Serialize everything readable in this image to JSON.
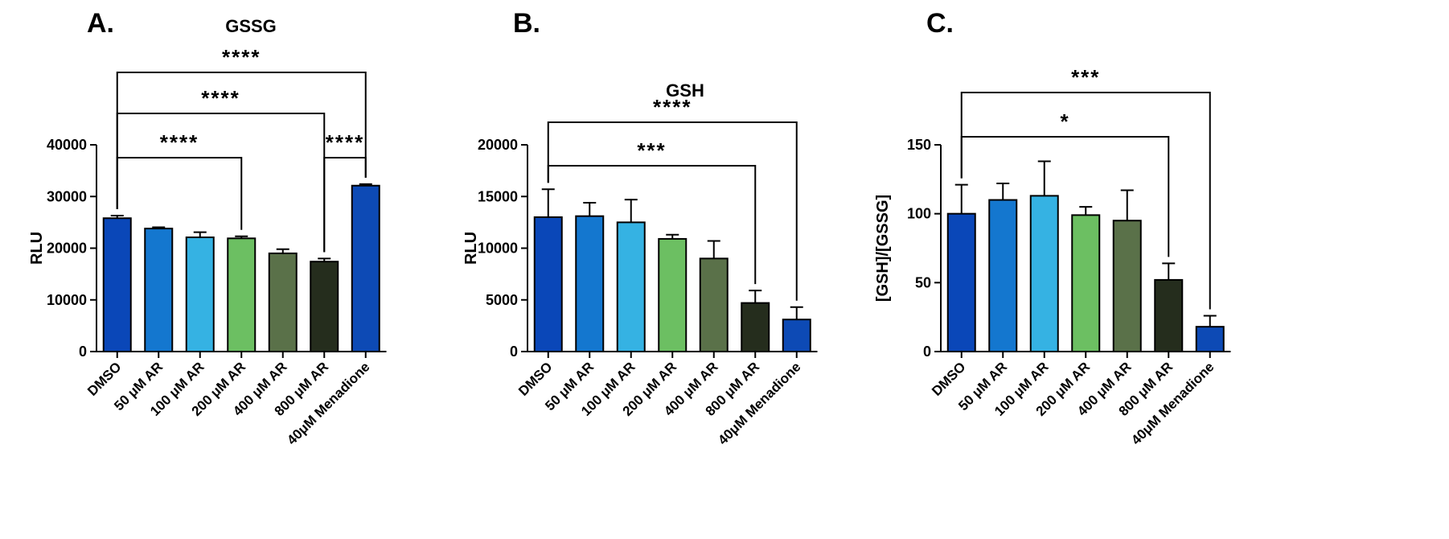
{
  "chart_data": [
    {
      "type": "bar",
      "panel": "A.",
      "title": "GSSG",
      "xlabel": "",
      "ylabel": "RLU",
      "ylim": [
        0,
        40000
      ],
      "yticks": [
        0,
        10000,
        20000,
        30000,
        40000
      ],
      "categories": [
        "DMSO",
        "50 μM AR",
        "100 μM AR",
        "200 μM AR",
        "400 μM AR",
        "800 μM AR",
        "40μM Menadione"
      ],
      "values": [
        25800,
        23800,
        22100,
        21900,
        19000,
        17400,
        32100
      ],
      "errors": [
        500,
        250,
        1000,
        400,
        800,
        600,
        300
      ],
      "colors": [
        "#0a47b8",
        "#1477cf",
        "#35b2e3",
        "#6cbf62",
        "#5a7149",
        "#252d1d",
        "#0d4ab5"
      ],
      "significance": [
        {
          "from": 0,
          "to": 3,
          "label": "****"
        },
        {
          "from": 0,
          "to": 5,
          "label": "****"
        },
        {
          "from": 5,
          "to": 6,
          "label": "****"
        },
        {
          "from": 0,
          "to": 6,
          "label": "****"
        }
      ],
      "grid": false,
      "legend": "none"
    },
    {
      "type": "bar",
      "panel": "B.",
      "title": "GSH",
      "xlabel": "",
      "ylabel": "RLU",
      "ylim": [
        0,
        20000
      ],
      "yticks": [
        0,
        5000,
        10000,
        15000,
        20000
      ],
      "categories": [
        "DMSO",
        "50 μM AR",
        "100 μM AR",
        "200 μM AR",
        "400 μM AR",
        "800 μM AR",
        "40μM Menadione"
      ],
      "values": [
        13000,
        13100,
        12500,
        10900,
        9000,
        4700,
        3100
      ],
      "errors": [
        2700,
        1300,
        2200,
        400,
        1700,
        1200,
        1200
      ],
      "colors": [
        "#0a47b8",
        "#1477cf",
        "#35b2e3",
        "#6cbf62",
        "#5a7149",
        "#252d1d",
        "#0d4ab5"
      ],
      "significance": [
        {
          "from": 0,
          "to": 5,
          "label": "***"
        },
        {
          "from": 0,
          "to": 6,
          "label": "****"
        }
      ],
      "grid": false,
      "legend": "none"
    },
    {
      "type": "bar",
      "panel": "C.",
      "title": "",
      "xlabel": "",
      "ylabel": "[GSH]/[GSSG]",
      "ylim": [
        0,
        150
      ],
      "yticks": [
        0,
        50,
        100,
        150
      ],
      "categories": [
        "DMSO",
        "50 μM AR",
        "100 μM AR",
        "200 μM AR",
        "400 μM AR",
        "800 μM AR",
        "40μM Menadione"
      ],
      "values": [
        100,
        110,
        113,
        99,
        95,
        52,
        18
      ],
      "errors": [
        21,
        12,
        25,
        6,
        22,
        12,
        8
      ],
      "colors": [
        "#0a47b8",
        "#1477cf",
        "#35b2e3",
        "#6cbf62",
        "#5a7149",
        "#252d1d",
        "#0d4ab5"
      ],
      "significance": [
        {
          "from": 0,
          "to": 5,
          "label": "*"
        },
        {
          "from": 0,
          "to": 6,
          "label": "***"
        }
      ],
      "grid": false,
      "legend": "none"
    }
  ]
}
